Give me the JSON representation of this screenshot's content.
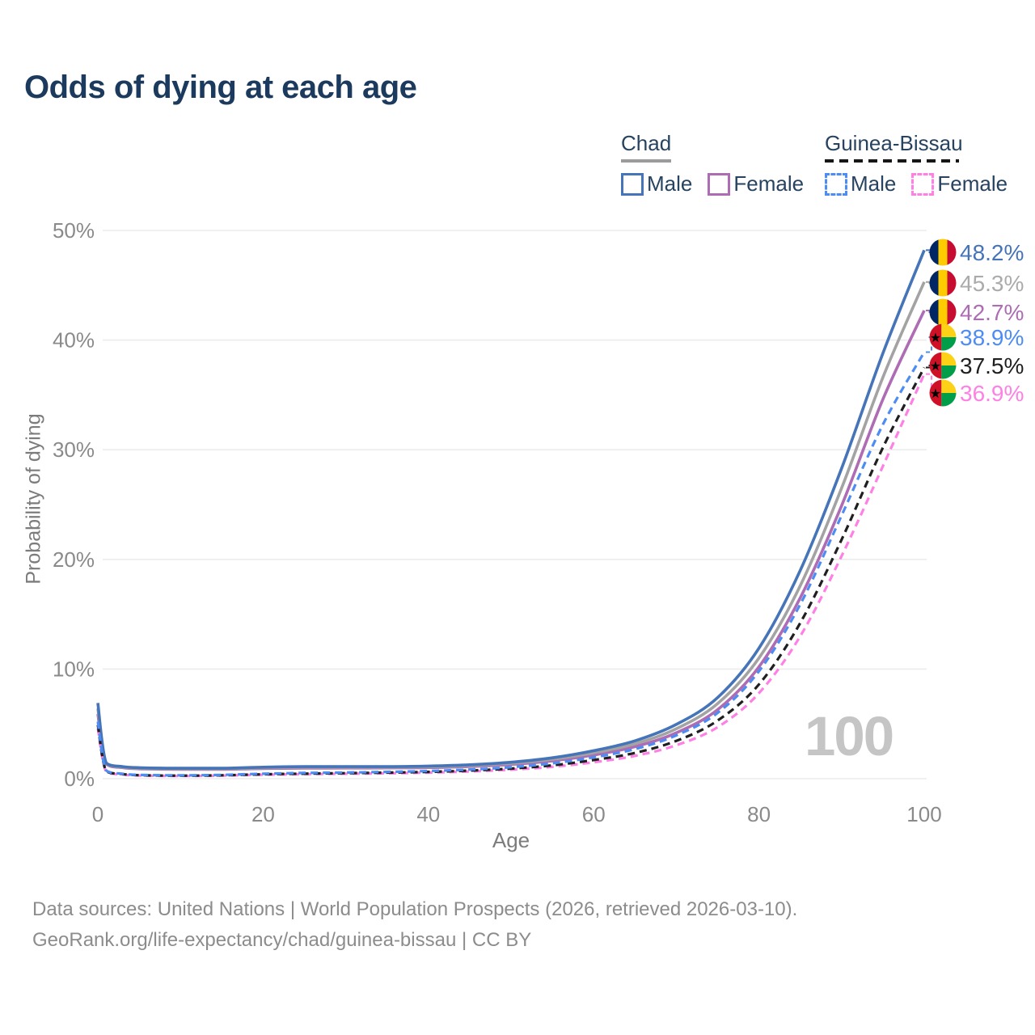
{
  "title": "Odds of dying at each age",
  "watermark": "100",
  "legend": {
    "groups": [
      {
        "label": "Chad",
        "underline_style": "solid",
        "underline_color": "#9b9b9b",
        "underline_width": 62,
        "items": [
          {
            "label": "Male",
            "color": "#4574b9",
            "dashed": false
          },
          {
            "label": "Female",
            "color": "#ad6cb3",
            "dashed": false
          }
        ]
      },
      {
        "label": "Guinea-Bissau",
        "underline_style": "dashed",
        "underline_color": "#161616",
        "underline_width": 166,
        "items": [
          {
            "label": "Male",
            "color": "#4d8cf2",
            "dashed": true
          },
          {
            "label": "Female",
            "color": "#ff80e5",
            "dashed": true
          }
        ]
      }
    ]
  },
  "axes": {
    "x": {
      "label": "Age",
      "ticks": [
        0,
        20,
        40,
        60,
        80,
        100
      ]
    },
    "y": {
      "label": "Probability of dying",
      "ticks": [
        {
          "value": 0,
          "label": "0%"
        },
        {
          "value": 10,
          "label": "10%"
        },
        {
          "value": 20,
          "label": "20%"
        },
        {
          "value": 30,
          "label": "30%"
        },
        {
          "value": 40,
          "label": "40%"
        },
        {
          "value": 50,
          "label": "50%"
        }
      ]
    }
  },
  "chart_data": {
    "type": "line",
    "title": "Odds of dying at each age",
    "xlabel": "Age",
    "ylabel": "Probability of dying",
    "xlim": [
      0,
      100
    ],
    "ylim": [
      0,
      50
    ],
    "grid": true,
    "legend_position": "top-right",
    "y_unit": "percent",
    "x": [
      0,
      1,
      3,
      5,
      10,
      15,
      20,
      25,
      30,
      35,
      40,
      45,
      50,
      55,
      60,
      65,
      70,
      75,
      80,
      85,
      90,
      95,
      100
    ],
    "series": [
      {
        "name": "Chad Male",
        "country": "Chad",
        "sex": "Male",
        "color": "#4574b9",
        "dashed": false,
        "flag": "chad",
        "end_label": "48.2%",
        "end_value": 48.2,
        "label_color": "#4574b9",
        "values": [
          6.9,
          1.45,
          1.1,
          1.0,
          0.95,
          0.95,
          1.05,
          1.1,
          1.1,
          1.1,
          1.15,
          1.27,
          1.5,
          1.9,
          2.55,
          3.45,
          4.95,
          7.4,
          11.9,
          19.0,
          28.3,
          38.8,
          48.2
        ]
      },
      {
        "name": "Chad Both sexes",
        "country": "Chad",
        "sex": "Both",
        "color": "#a3a3a3",
        "dashed": false,
        "flag": "chad",
        "end_label": "45.3%",
        "end_value": 45.3,
        "label_color": "#ababab",
        "values": [
          6.4,
          1.4,
          1.05,
          0.95,
          0.9,
          0.9,
          0.99,
          1.03,
          1.03,
          1.04,
          1.08,
          1.19,
          1.4,
          1.77,
          2.35,
          3.18,
          4.55,
          6.85,
          11.0,
          17.6,
          26.5,
          36.6,
          45.3
        ]
      },
      {
        "name": "Chad Female",
        "country": "Chad",
        "sex": "Female",
        "color": "#ad6cb3",
        "dashed": false,
        "flag": "chad",
        "end_label": "42.7%",
        "end_value": 42.7,
        "label_color": "#ad6cb3",
        "values": [
          5.9,
          1.35,
          1.0,
          0.9,
          0.85,
          0.85,
          0.93,
          0.96,
          0.97,
          0.98,
          1.01,
          1.11,
          1.3,
          1.63,
          2.16,
          2.92,
          4.18,
          6.3,
          10.2,
          16.5,
          24.9,
          34.6,
          42.7
        ]
      },
      {
        "name": "Guinea-Bissau Male",
        "country": "Guinea-Bissau",
        "sex": "Male",
        "color": "#4d8cf2",
        "dashed": true,
        "flag": "guinea-bissau",
        "end_label": "38.9%",
        "end_value": 38.9,
        "label_color": "#4d8cf2",
        "values": [
          5.2,
          0.75,
          0.45,
          0.35,
          0.3,
          0.35,
          0.45,
          0.52,
          0.56,
          0.62,
          0.7,
          0.83,
          1.05,
          1.4,
          1.95,
          2.7,
          3.95,
          6.0,
          9.8,
          15.9,
          24.0,
          32.3,
          38.9
        ]
      },
      {
        "name": "Guinea-Bissau Both sexes",
        "country": "Guinea-Bissau",
        "sex": "Both",
        "color": "#1f1f1f",
        "dashed": true,
        "flag": "guinea-bissau",
        "end_label": "37.5%",
        "end_value": 37.5,
        "label_color": "#1f1f1f",
        "values": [
          4.9,
          0.7,
          0.42,
          0.32,
          0.27,
          0.31,
          0.4,
          0.46,
          0.5,
          0.55,
          0.62,
          0.74,
          0.92,
          1.22,
          1.7,
          2.35,
          3.45,
          5.3,
          8.6,
          14.2,
          21.8,
          30.2,
          37.5
        ]
      },
      {
        "name": "Guinea-Bissau Female",
        "country": "Guinea-Bissau",
        "sex": "Female",
        "color": "#ff80e5",
        "dashed": true,
        "flag": "guinea-bissau",
        "end_label": "36.9%",
        "end_value": 36.9,
        "label_color": "#ff80e5",
        "values": [
          4.6,
          0.65,
          0.38,
          0.29,
          0.24,
          0.28,
          0.36,
          0.41,
          0.45,
          0.49,
          0.55,
          0.66,
          0.82,
          1.08,
          1.5,
          2.08,
          3.05,
          4.7,
          7.8,
          13.0,
          20.3,
          28.5,
          36.9
        ]
      }
    ],
    "flags": {
      "chad": {
        "stripes": [
          "#002664",
          "#FECB00",
          "#C60C30"
        ]
      },
      "guinea-bissau": {
        "red": "#CE1126",
        "yellow": "#FCD116",
        "green": "#009E49",
        "star": "#000000"
      }
    }
  },
  "source": {
    "line1": "Data sources: United Nations | World Population Prospects (2026, retrieved 2026-03-10).",
    "line2": "GeoRank.org/life-expectancy/chad/guinea-bissau | CC BY"
  }
}
